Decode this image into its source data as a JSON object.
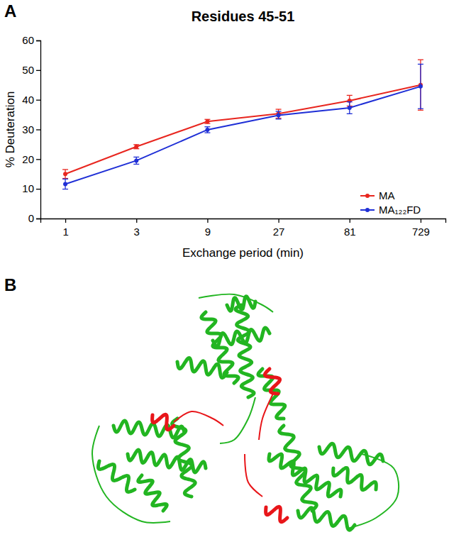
{
  "chart_data": {
    "type": "line",
    "panel_label": "A",
    "title": "Residues 45-51",
    "x_label": "Exchange period (min)",
    "y_label": "% Deuteration",
    "categories": [
      "1",
      "3",
      "9",
      "27",
      "81",
      "729"
    ],
    "series": [
      {
        "name": "MA",
        "color": "#e8261f",
        "marker": "circle",
        "values": [
          15,
          24.2,
          32.7,
          35.3,
          39.7,
          45
        ],
        "errors": [
          1.5,
          0.7,
          0.7,
          1.5,
          1.8,
          8.5
        ]
      },
      {
        "name": "MA₁₂₂FD",
        "color": "#1f2fd6",
        "marker": "circle",
        "values": [
          11.6,
          19.5,
          29.9,
          34.8,
          37.3,
          44.5
        ],
        "errors": [
          1.7,
          1.2,
          1.0,
          1.3,
          2.0,
          7.5
        ]
      }
    ],
    "ylim": [
      0,
      60
    ],
    "yticks": [
      0,
      10,
      20,
      30,
      40,
      50,
      60
    ],
    "grid": false,
    "legend": "lower right"
  },
  "panel_b": {
    "label": "B"
  }
}
